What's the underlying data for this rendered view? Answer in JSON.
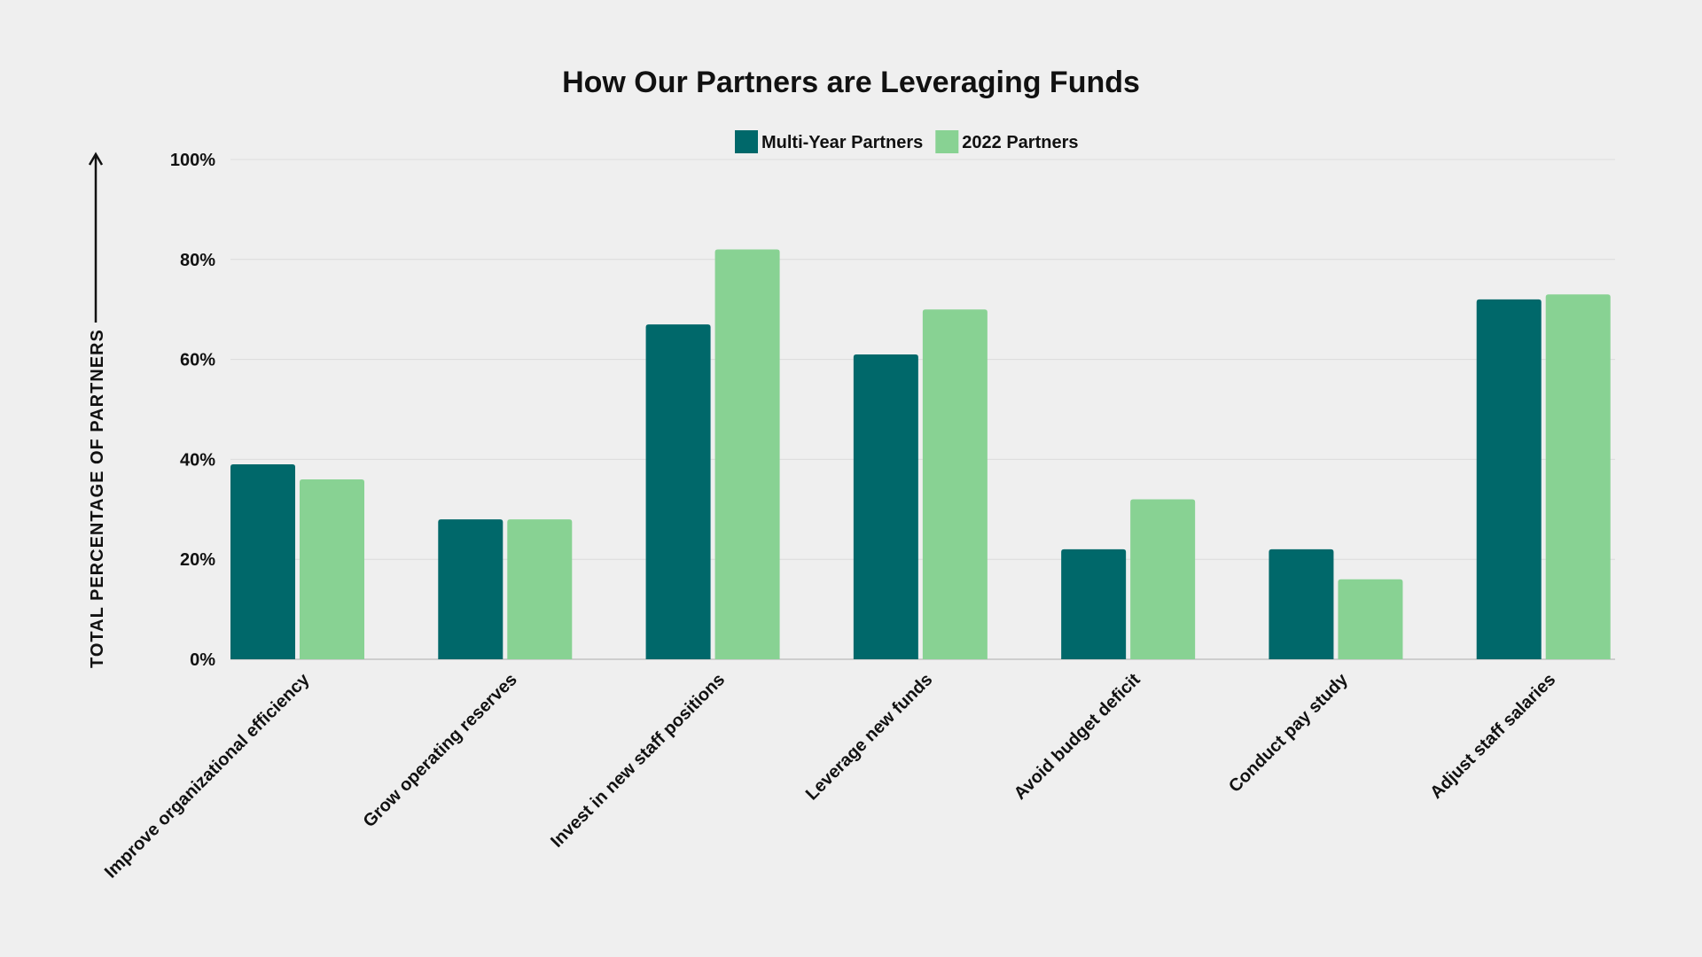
{
  "chart_data": {
    "type": "bar",
    "title": "How Our Partners are Leveraging Funds",
    "ylabel": "TOTAL PERCENTAGE OF PARTNERS",
    "xlabel": "",
    "ylim": [
      0,
      100
    ],
    "y_ticks": [
      0,
      20,
      40,
      60,
      80,
      100
    ],
    "y_tick_labels": [
      "0%",
      "20%",
      "40%",
      "60%",
      "80%",
      "100%"
    ],
    "grid": true,
    "legend_position": "top-center",
    "categories": [
      "Improve organizational efficiency",
      "Grow operating reserves",
      "Invest in new staff positions",
      "Leverage new funds",
      "Avoid budget deficit",
      "Conduct pay study",
      "Adjust staff salaries"
    ],
    "series": [
      {
        "name": "Multi-Year Partners",
        "color": "#00686a",
        "values": [
          39,
          28,
          67,
          61,
          22,
          22,
          72
        ]
      },
      {
        "name": "2022 Partners",
        "color": "#88d293",
        "values": [
          36,
          28,
          82,
          70,
          32,
          16,
          73
        ]
      }
    ]
  }
}
